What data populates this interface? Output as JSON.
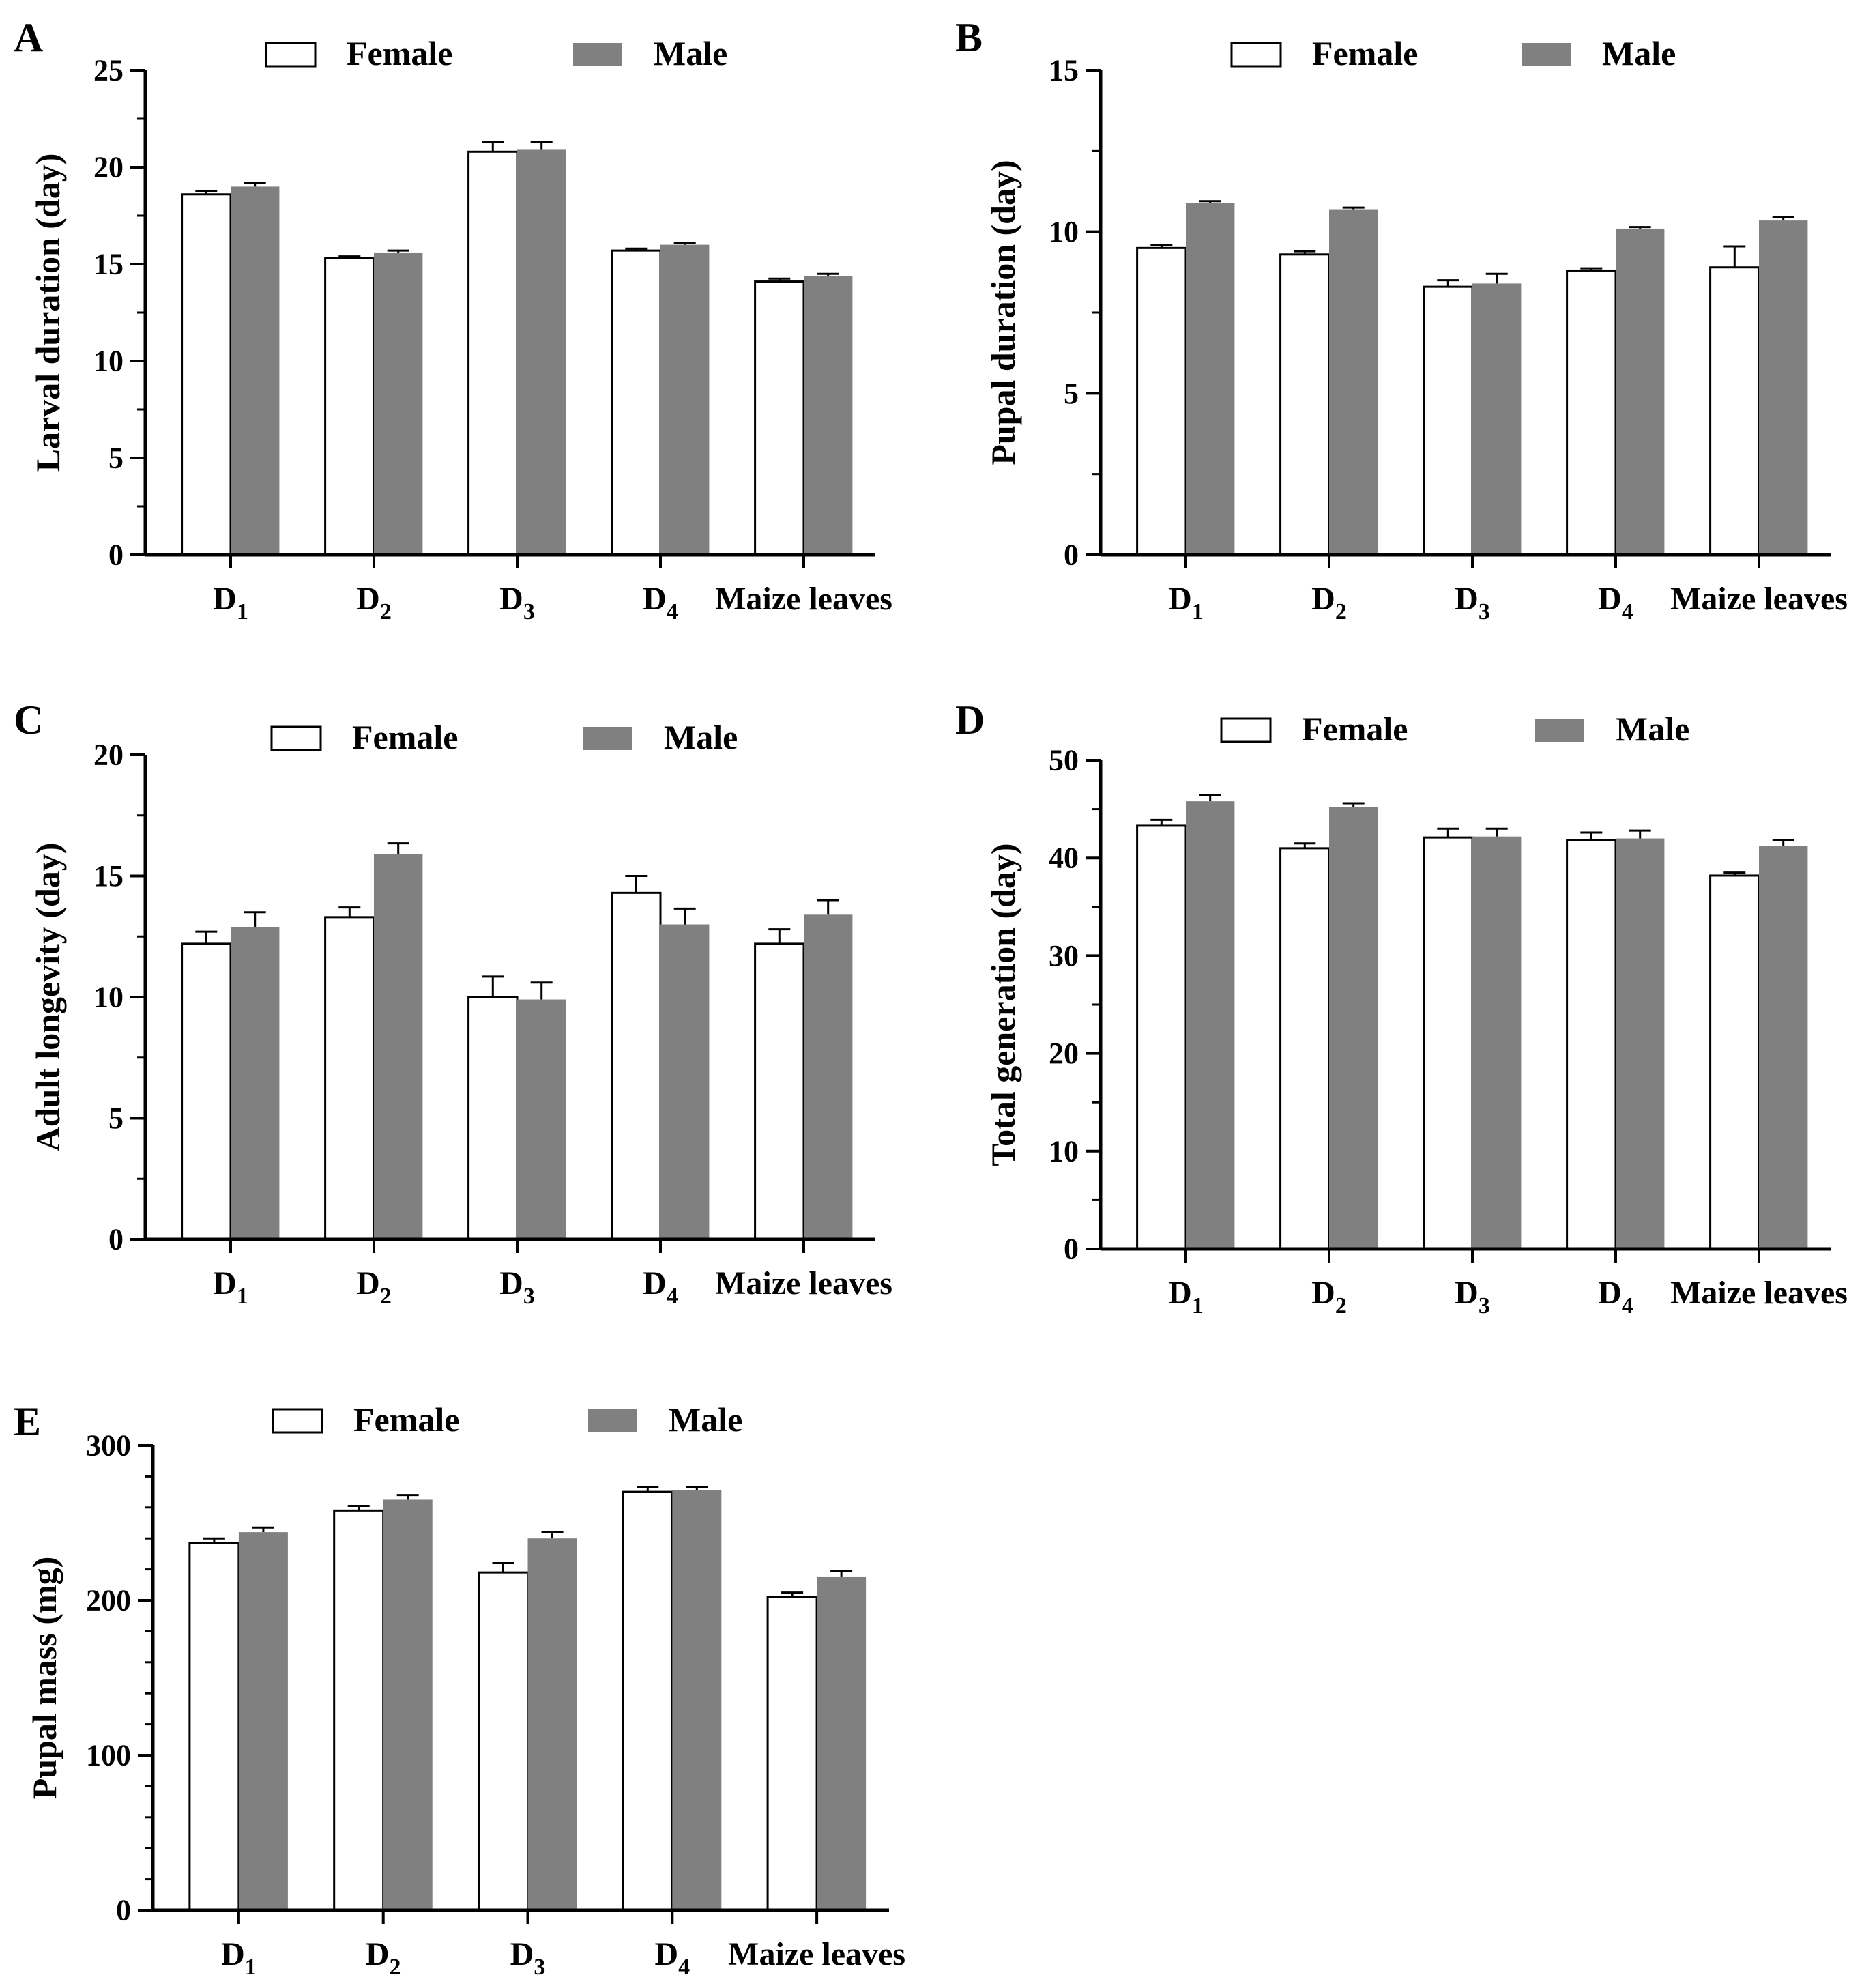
{
  "legend": {
    "female": "Female",
    "male": "Male"
  },
  "colors": {
    "female": "#ffffff",
    "male": "#808080",
    "axis": "#000000"
  },
  "chart_data": [
    {
      "id": "A",
      "type": "bar",
      "panel_label": "A",
      "ylabel": "Larval duration (day)",
      "ylim": [
        0,
        25
      ],
      "yticks": [
        0,
        5,
        10,
        15,
        20,
        25
      ],
      "categories": [
        {
          "main": "D",
          "sub": "1"
        },
        {
          "main": "D",
          "sub": "2"
        },
        {
          "main": "D",
          "sub": "3"
        },
        {
          "main": "D",
          "sub": "4"
        },
        {
          "main": "Maize leaves",
          "sub": ""
        }
      ],
      "series": [
        {
          "name": "Female",
          "values": [
            18.6,
            15.3,
            20.8,
            15.7,
            14.1
          ],
          "errors": [
            0.15,
            0.1,
            0.5,
            0.1,
            0.15
          ]
        },
        {
          "name": "Male",
          "values": [
            19.0,
            15.6,
            20.9,
            16.0,
            14.4
          ],
          "errors": [
            0.2,
            0.1,
            0.4,
            0.1,
            0.1
          ]
        }
      ]
    },
    {
      "id": "B",
      "type": "bar",
      "panel_label": "B",
      "ylabel": "Pupal duration (day)",
      "ylim": [
        0,
        15
      ],
      "yticks": [
        0,
        5,
        10,
        15
      ],
      "categories": [
        {
          "main": "D",
          "sub": "1"
        },
        {
          "main": "D",
          "sub": "2"
        },
        {
          "main": "D",
          "sub": "3"
        },
        {
          "main": "D",
          "sub": "4"
        },
        {
          "main": "Maize leaves",
          "sub": ""
        }
      ],
      "series": [
        {
          "name": "Female",
          "values": [
            9.5,
            9.3,
            8.3,
            8.8,
            8.9
          ],
          "errors": [
            0.1,
            0.1,
            0.2,
            0.07,
            0.65
          ]
        },
        {
          "name": "Male",
          "values": [
            10.9,
            10.7,
            8.4,
            10.1,
            10.35
          ],
          "errors": [
            0.05,
            0.05,
            0.3,
            0.05,
            0.1
          ]
        }
      ]
    },
    {
      "id": "C",
      "type": "bar",
      "panel_label": "C",
      "ylabel": "Adult longevity (day)",
      "ylim": [
        0,
        20
      ],
      "yticks": [
        0,
        5,
        10,
        15,
        20
      ],
      "categories": [
        {
          "main": "D",
          "sub": "1"
        },
        {
          "main": "D",
          "sub": "2"
        },
        {
          "main": "D",
          "sub": "3"
        },
        {
          "main": "D",
          "sub": "4"
        },
        {
          "main": "Maize leaves",
          "sub": ""
        }
      ],
      "series": [
        {
          "name": "Female",
          "values": [
            12.2,
            13.3,
            10.0,
            14.3,
            12.2
          ],
          "errors": [
            0.5,
            0.4,
            0.85,
            0.7,
            0.6
          ]
        },
        {
          "name": "Male",
          "values": [
            12.9,
            15.9,
            9.9,
            13.0,
            13.4
          ],
          "errors": [
            0.6,
            0.45,
            0.7,
            0.65,
            0.6
          ]
        }
      ]
    },
    {
      "id": "D",
      "type": "bar",
      "panel_label": "D",
      "ylabel": "Total generation (day)",
      "ylim": [
        0,
        50
      ],
      "yticks": [
        0,
        10,
        20,
        30,
        40,
        50
      ],
      "categories": [
        {
          "main": "D",
          "sub": "1"
        },
        {
          "main": "D",
          "sub": "2"
        },
        {
          "main": "D",
          "sub": "3"
        },
        {
          "main": "D",
          "sub": "4"
        },
        {
          "main": "Maize leaves",
          "sub": ""
        }
      ],
      "series": [
        {
          "name": "Female",
          "values": [
            43.3,
            41.0,
            42.1,
            41.8,
            38.2
          ],
          "errors": [
            0.6,
            0.5,
            0.9,
            0.8,
            0.3
          ]
        },
        {
          "name": "Male",
          "values": [
            45.8,
            45.2,
            42.2,
            42.0,
            41.2
          ],
          "errors": [
            0.6,
            0.4,
            0.8,
            0.8,
            0.6
          ]
        }
      ]
    },
    {
      "id": "E",
      "type": "bar",
      "panel_label": "E",
      "ylabel": "Pupal mass (mg)",
      "ylim": [
        0,
        300
      ],
      "yticks": [
        0,
        100,
        200,
        300
      ],
      "categories": [
        {
          "main": "D",
          "sub": "1"
        },
        {
          "main": "D",
          "sub": "2"
        },
        {
          "main": "D",
          "sub": "3"
        },
        {
          "main": "D",
          "sub": "4"
        },
        {
          "main": "Maize leaves",
          "sub": ""
        }
      ],
      "series": [
        {
          "name": "Female",
          "values": [
            237,
            258,
            218,
            270,
            202
          ],
          "errors": [
            3,
            3,
            6,
            3,
            3
          ]
        },
        {
          "name": "Male",
          "values": [
            244,
            265,
            240,
            271,
            215
          ],
          "errors": [
            3,
            3,
            4,
            2,
            4
          ]
        }
      ]
    }
  ]
}
